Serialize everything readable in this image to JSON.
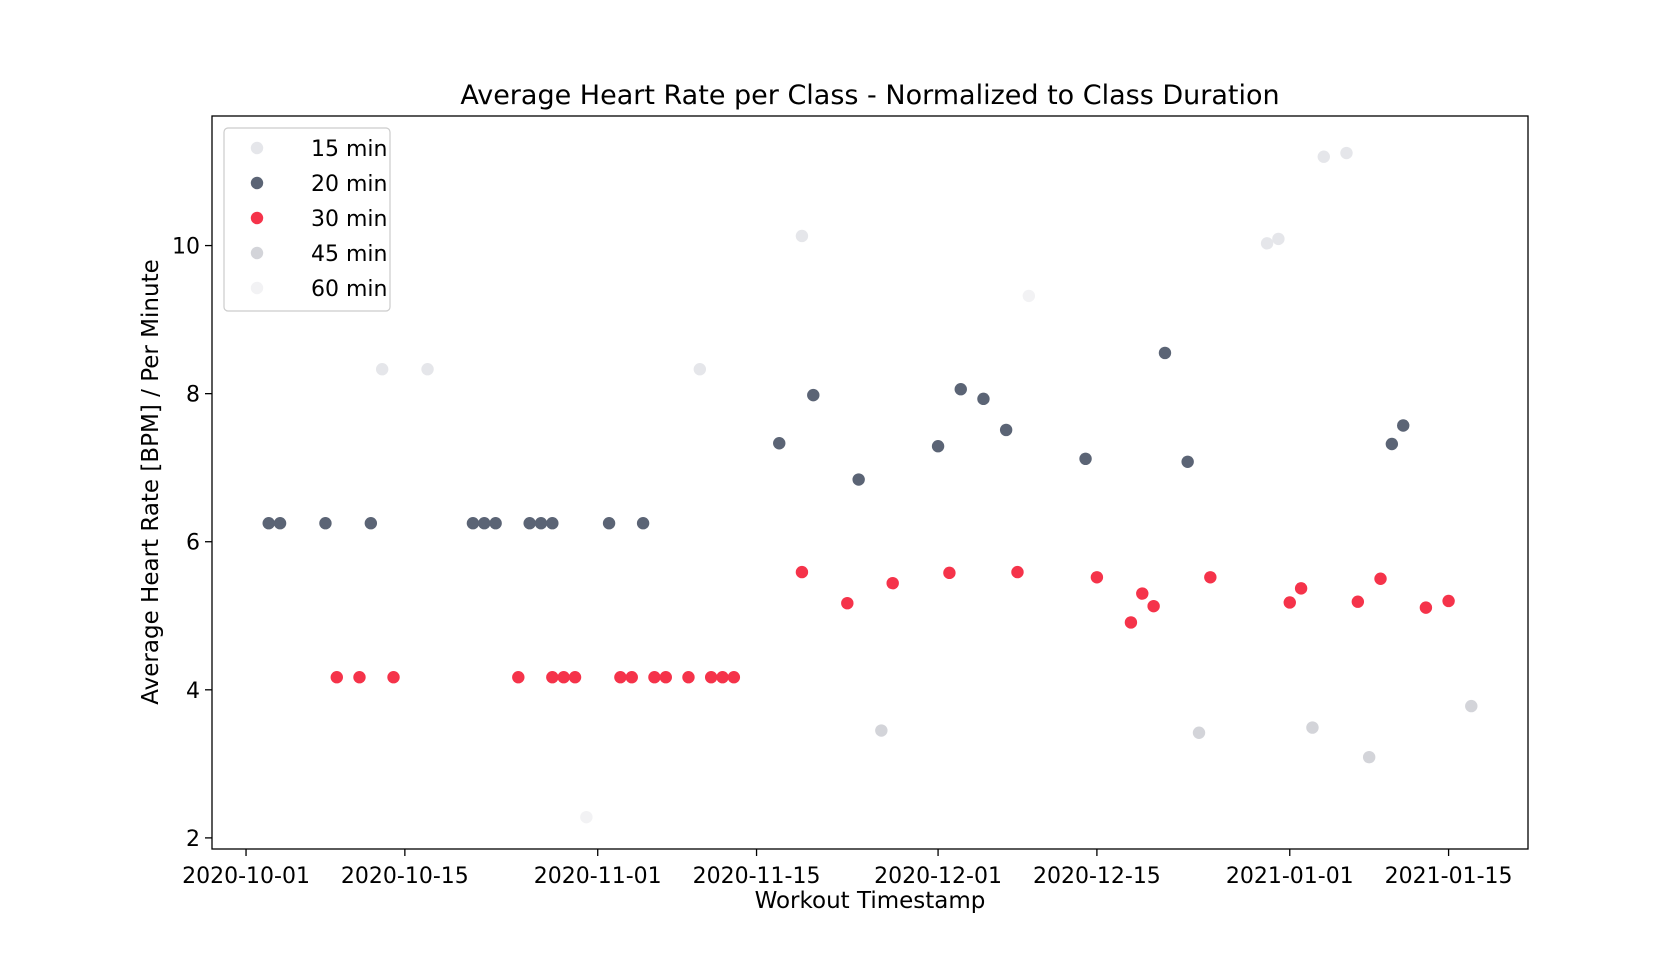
{
  "chart_data": {
    "type": "scatter",
    "title": "Average Heart Rate per Class - Normalized to Class Duration",
    "xlabel": "Workout Timestamp",
    "ylabel": "Average Heart Rate [BPM] / Per Minute",
    "x_is_date": true,
    "xlim": [
      "2020-09-28",
      "2021-01-22"
    ],
    "ylim": [
      1.85,
      11.75
    ],
    "xticks": [
      "2020-10-01",
      "2020-10-15",
      "2020-11-01",
      "2020-11-15",
      "2020-12-01",
      "2020-12-15",
      "2021-01-01",
      "2021-01-15"
    ],
    "yticks": [
      2,
      4,
      6,
      8,
      10
    ],
    "grid": false,
    "legend_position": "top-left",
    "series": [
      {
        "name": "15 min",
        "color": "#e5e6ea",
        "points": [
          {
            "x": "2020-10-13",
            "y": 8.33
          },
          {
            "x": "2020-10-17",
            "y": 8.33
          },
          {
            "x": "2020-11-10",
            "y": 8.33
          },
          {
            "x": "2020-11-19",
            "y": 10.13
          },
          {
            "x": "2020-12-30",
            "y": 10.03
          },
          {
            "x": "2020-12-31",
            "y": 10.09
          },
          {
            "x": "2021-01-04",
            "y": 11.2
          },
          {
            "x": "2021-01-06",
            "y": 11.25
          }
        ]
      },
      {
        "name": "20 min",
        "color": "#5b6475",
        "points": [
          {
            "x": "2020-10-03",
            "y": 6.25
          },
          {
            "x": "2020-10-04",
            "y": 6.25
          },
          {
            "x": "2020-10-08",
            "y": 6.25
          },
          {
            "x": "2020-10-12",
            "y": 6.25
          },
          {
            "x": "2020-10-21",
            "y": 6.25
          },
          {
            "x": "2020-10-22",
            "y": 6.25
          },
          {
            "x": "2020-10-23",
            "y": 6.25
          },
          {
            "x": "2020-10-26",
            "y": 6.25
          },
          {
            "x": "2020-10-27",
            "y": 6.25
          },
          {
            "x": "2020-10-28",
            "y": 6.25
          },
          {
            "x": "2020-11-02",
            "y": 6.25
          },
          {
            "x": "2020-11-05",
            "y": 6.25
          },
          {
            "x": "2020-11-17",
            "y": 7.33
          },
          {
            "x": "2020-11-20",
            "y": 7.98
          },
          {
            "x": "2020-11-24",
            "y": 6.84
          },
          {
            "x": "2020-12-01",
            "y": 7.29
          },
          {
            "x": "2020-12-03",
            "y": 8.06
          },
          {
            "x": "2020-12-05",
            "y": 7.93
          },
          {
            "x": "2020-12-07",
            "y": 7.51
          },
          {
            "x": "2020-12-14",
            "y": 7.12
          },
          {
            "x": "2020-12-21",
            "y": 8.55
          },
          {
            "x": "2020-12-23",
            "y": 7.08
          },
          {
            "x": "2021-01-10",
            "y": 7.32
          },
          {
            "x": "2021-01-11",
            "y": 7.57
          }
        ]
      },
      {
        "name": "30 min",
        "color": "#f5334a",
        "points": [
          {
            "x": "2020-10-09",
            "y": 4.17
          },
          {
            "x": "2020-10-11",
            "y": 4.17
          },
          {
            "x": "2020-10-14",
            "y": 4.17
          },
          {
            "x": "2020-10-25",
            "y": 4.17
          },
          {
            "x": "2020-10-28",
            "y": 4.17
          },
          {
            "x": "2020-10-29",
            "y": 4.17
          },
          {
            "x": "2020-10-30",
            "y": 4.17
          },
          {
            "x": "2020-11-03",
            "y": 4.17
          },
          {
            "x": "2020-11-04",
            "y": 4.17
          },
          {
            "x": "2020-11-06",
            "y": 4.17
          },
          {
            "x": "2020-11-07",
            "y": 4.17
          },
          {
            "x": "2020-11-09",
            "y": 4.17
          },
          {
            "x": "2020-11-11",
            "y": 4.17
          },
          {
            "x": "2020-11-12",
            "y": 4.17
          },
          {
            "x": "2020-11-13",
            "y": 4.17
          },
          {
            "x": "2020-11-19",
            "y": 5.59
          },
          {
            "x": "2020-11-23",
            "y": 5.17
          },
          {
            "x": "2020-11-27",
            "y": 5.44
          },
          {
            "x": "2020-12-02",
            "y": 5.58
          },
          {
            "x": "2020-12-08",
            "y": 5.59
          },
          {
            "x": "2020-12-15",
            "y": 5.52
          },
          {
            "x": "2020-12-18",
            "y": 4.91
          },
          {
            "x": "2020-12-19",
            "y": 5.3
          },
          {
            "x": "2020-12-20",
            "y": 5.13
          },
          {
            "x": "2020-12-25",
            "y": 5.52
          },
          {
            "x": "2021-01-01",
            "y": 5.18
          },
          {
            "x": "2021-01-02",
            "y": 5.37
          },
          {
            "x": "2021-01-07",
            "y": 5.19
          },
          {
            "x": "2021-01-09",
            "y": 5.5
          },
          {
            "x": "2021-01-13",
            "y": 5.11
          },
          {
            "x": "2021-01-15",
            "y": 5.2
          }
        ]
      },
      {
        "name": "45 min",
        "color": "#d3d4d9",
        "points": [
          {
            "x": "2020-11-26",
            "y": 3.45
          },
          {
            "x": "2020-12-24",
            "y": 3.42
          },
          {
            "x": "2021-01-03",
            "y": 3.49
          },
          {
            "x": "2021-01-08",
            "y": 3.09
          },
          {
            "x": "2021-01-17",
            "y": 3.78
          }
        ]
      },
      {
        "name": "60 min",
        "color": "#f2f2f4",
        "points": [
          {
            "x": "2020-10-31",
            "y": 2.28
          },
          {
            "x": "2020-12-09",
            "y": 9.32
          }
        ]
      }
    ]
  }
}
